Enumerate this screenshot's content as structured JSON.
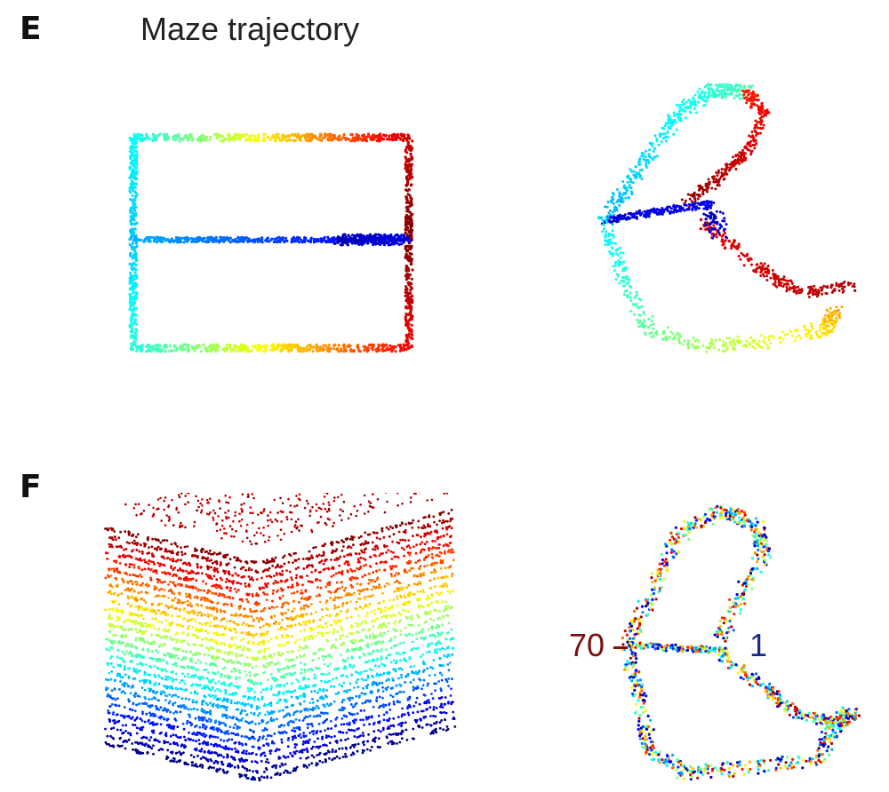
{
  "panels": {
    "e": {
      "letter": "E",
      "title": "Maze trajectory"
    },
    "f": {
      "letter": "F"
    }
  },
  "labels": {
    "start": "70",
    "end": "1"
  },
  "colormap": "jet",
  "colors": {
    "start_label": "#7a1010",
    "end_label": "#1a2a8a"
  }
}
